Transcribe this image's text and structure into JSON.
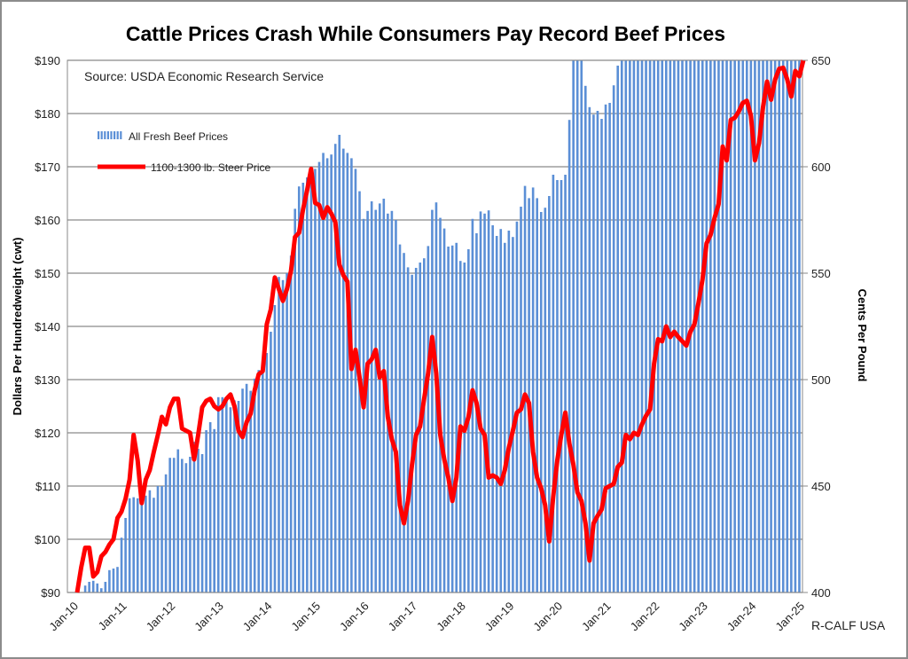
{
  "chart_data": {
    "type": "bar+line",
    "title": "Cattle Prices Crash While Consumers Pay Record Beef Prices",
    "source_note": "Source: USDA Economic Research Service",
    "credit": "R-CALF USA",
    "ylabel_left": "Dollars Per Hundredweight (cwt)",
    "ylabel_right": "Cents Per Pound",
    "ylim_left": [
      90,
      190
    ],
    "ylim_right": [
      400,
      650
    ],
    "yticks_left": [
      "$90",
      "$100",
      "$110",
      "$120",
      "$130",
      "$140",
      "$150",
      "$160",
      "$170",
      "$180",
      "$190"
    ],
    "yticks_right": [
      "400",
      "450",
      "500",
      "550",
      "600",
      "650"
    ],
    "xticks": [
      "Jan-10",
      "Jan-11",
      "Jan-12",
      "Jan-13",
      "Jan-14",
      "Jan-15",
      "Jan-16",
      "Jan-17",
      "Jan-18",
      "Jan-19",
      "Jan-20",
      "Jan-21",
      "Jan-22",
      "Jan-23",
      "Jan-24",
      "Jan-25"
    ],
    "grid": "horizontal",
    "legend_position": "top-left",
    "x_start": "Jan-10",
    "x_frequency": "monthly",
    "series": [
      {
        "name": "All Fresh Beef Prices",
        "kind": "bar",
        "axis": "left",
        "color": "#5b8fd6",
        "values": [
          null,
          null,
          91.3,
          92,
          92.2,
          91.7,
          90.8,
          92,
          94.2,
          94.5,
          94.8,
          100.3,
          104,
          107.7,
          107.9,
          107.7,
          108,
          108.2,
          109.2,
          107.8,
          110,
          110,
          112.2,
          115.3,
          115.3,
          116.9,
          115.1,
          114.3,
          115.5,
          118.3,
          117,
          116,
          120.5,
          122,
          120.7,
          126.7,
          126.7,
          126.3,
          124.8,
          126.1,
          126,
          128.3,
          129.2,
          127.9,
          130.2,
          131.8,
          132,
          135,
          139,
          144,
          149.3,
          148.7,
          150,
          153.3,
          162.1,
          166.3,
          167,
          168,
          169.4,
          169.6,
          170.9,
          172.6,
          171.6,
          172.3,
          174.3,
          176,
          173.4,
          172.6,
          171.6,
          169.6,
          165.4,
          160.2,
          161.7,
          163.5,
          161.9,
          163.1,
          164,
          161.2,
          161.7,
          160,
          155.4,
          153.8,
          151.1,
          149.7,
          151,
          152,
          152.8,
          155.1,
          161.9,
          163.3,
          160.4,
          158.4,
          155,
          155.2,
          155.7,
          152.3,
          152,
          154.5,
          160.2,
          157.5,
          161.6,
          161.2,
          161.8,
          159,
          157,
          158.3,
          155.7,
          158,
          156.8,
          159.7,
          162.5,
          166.4,
          164.1,
          166.1,
          164.1,
          161.5,
          162.3,
          164.5,
          168.5,
          167.5,
          167.5,
          168.5,
          178.8,
          190,
          190,
          190,
          185.2,
          181.2,
          179.8,
          180.5,
          179,
          181.7,
          182,
          185.3,
          189,
          190,
          190,
          190,
          190,
          190,
          190,
          190,
          190,
          190,
          190,
          190,
          190,
          190,
          190,
          190,
          190,
          190,
          190,
          190,
          190,
          190,
          190,
          190,
          190,
          190,
          190,
          190,
          190,
          190,
          190,
          190,
          190,
          190,
          190,
          190,
          190,
          190,
          190,
          190,
          190,
          190,
          190,
          190,
          190,
          190
        ]
      },
      {
        "name": "1100-1300 lb. Steer Price",
        "kind": "line",
        "axis": "right",
        "color": "#ff0000",
        "values": [
          400,
          411.7,
          421,
          421,
          407.5,
          409.6,
          417,
          419,
          422.5,
          425,
          435,
          438,
          444,
          453,
          474,
          462,
          442,
          453,
          457.5,
          466,
          474,
          482.5,
          479,
          487,
          491,
          491,
          477,
          476,
          475,
          462.5,
          474,
          487,
          490,
          491,
          487.5,
          486,
          487.5,
          491,
          493,
          487.5,
          476,
          473,
          480,
          484,
          495,
          502.5,
          504,
          526,
          533,
          548,
          542.5,
          537,
          542.5,
          551,
          567,
          569,
          580,
          589,
          599,
          583,
          582,
          576,
          581,
          578,
          574,
          554,
          549,
          546,
          505,
          514,
          501,
          487,
          507.5,
          509.5,
          514,
          501,
          504,
          482.5,
          472,
          466,
          441,
          432.5,
          443,
          460,
          474,
          478,
          491,
          503,
          520,
          503,
          474,
          462.5,
          454,
          443,
          454,
          478,
          476,
          482.5,
          495,
          489,
          477,
          474,
          454,
          455,
          454,
          451,
          457.5,
          468,
          476,
          484.5,
          486,
          493,
          489,
          466,
          454,
          449,
          441,
          424,
          445,
          462,
          474,
          484.5,
          470,
          460,
          447,
          443,
          432.5,
          415,
          432.5,
          436,
          439,
          449,
          450,
          451,
          459,
          461,
          474,
          472,
          475,
          474,
          479,
          483,
          486,
          507.5,
          519,
          518,
          525,
          520,
          522.5,
          520,
          518,
          516,
          522.5,
          526,
          536,
          547,
          564,
          568,
          576,
          582.5,
          609.5,
          603,
          622,
          623,
          626,
          630,
          631,
          624,
          603,
          611,
          628,
          640,
          631.5,
          641,
          646,
          646.5,
          641,
          633,
          645,
          642.5,
          650
        ]
      }
    ]
  }
}
